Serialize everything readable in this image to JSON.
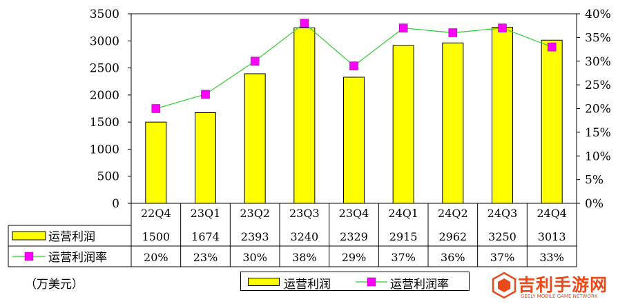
{
  "chart_data": {
    "type": "bar",
    "categories": [
      "22Q4",
      "23Q1",
      "23Q2",
      "23Q3",
      "23Q4",
      "24Q1",
      "24Q2",
      "24Q3",
      "24Q4"
    ],
    "series": [
      {
        "name": "运营利润",
        "type": "bar",
        "axis": "left",
        "values": [
          1500,
          1674,
          2393,
          3240,
          2329,
          2915,
          2962,
          3250,
          3013
        ],
        "color": "#ffff00"
      },
      {
        "name": "运营利润率",
        "type": "line",
        "axis": "right",
        "values": [
          20,
          23,
          30,
          38,
          29,
          37,
          36,
          37,
          33
        ],
        "color": "#33cc33",
        "marker_color": "#ff00ff"
      }
    ],
    "y_left": {
      "lim": [
        0,
        3500
      ],
      "ticks": [
        "0",
        "500",
        "1000",
        "1500",
        "2000",
        "2500",
        "3000",
        "3500"
      ]
    },
    "y_right": {
      "lim": [
        0,
        40
      ],
      "ticks": [
        "0%",
        "5%",
        "10%",
        "15%",
        "20%",
        "25%",
        "30%",
        "35%",
        "40%"
      ]
    },
    "table": {
      "row1_label": "运营利润",
      "row1_values": [
        "1500",
        "1674",
        "2393",
        "3240",
        "2329",
        "2915",
        "2962",
        "3250",
        "3013"
      ],
      "row2_label": "运营利润率",
      "row2_values": [
        "20%",
        "23%",
        "30%",
        "38%",
        "29%",
        "37%",
        "36%",
        "37%",
        "33%"
      ]
    },
    "unit": "（万美元）",
    "legend": {
      "bar_label": "运营利润",
      "line_label": "运营利润率",
      "position": "bottom"
    },
    "grid": false
  },
  "watermark": {
    "title": "吉利手游网",
    "subtitle": "GEELY MOBILE GAME NETWORK"
  }
}
